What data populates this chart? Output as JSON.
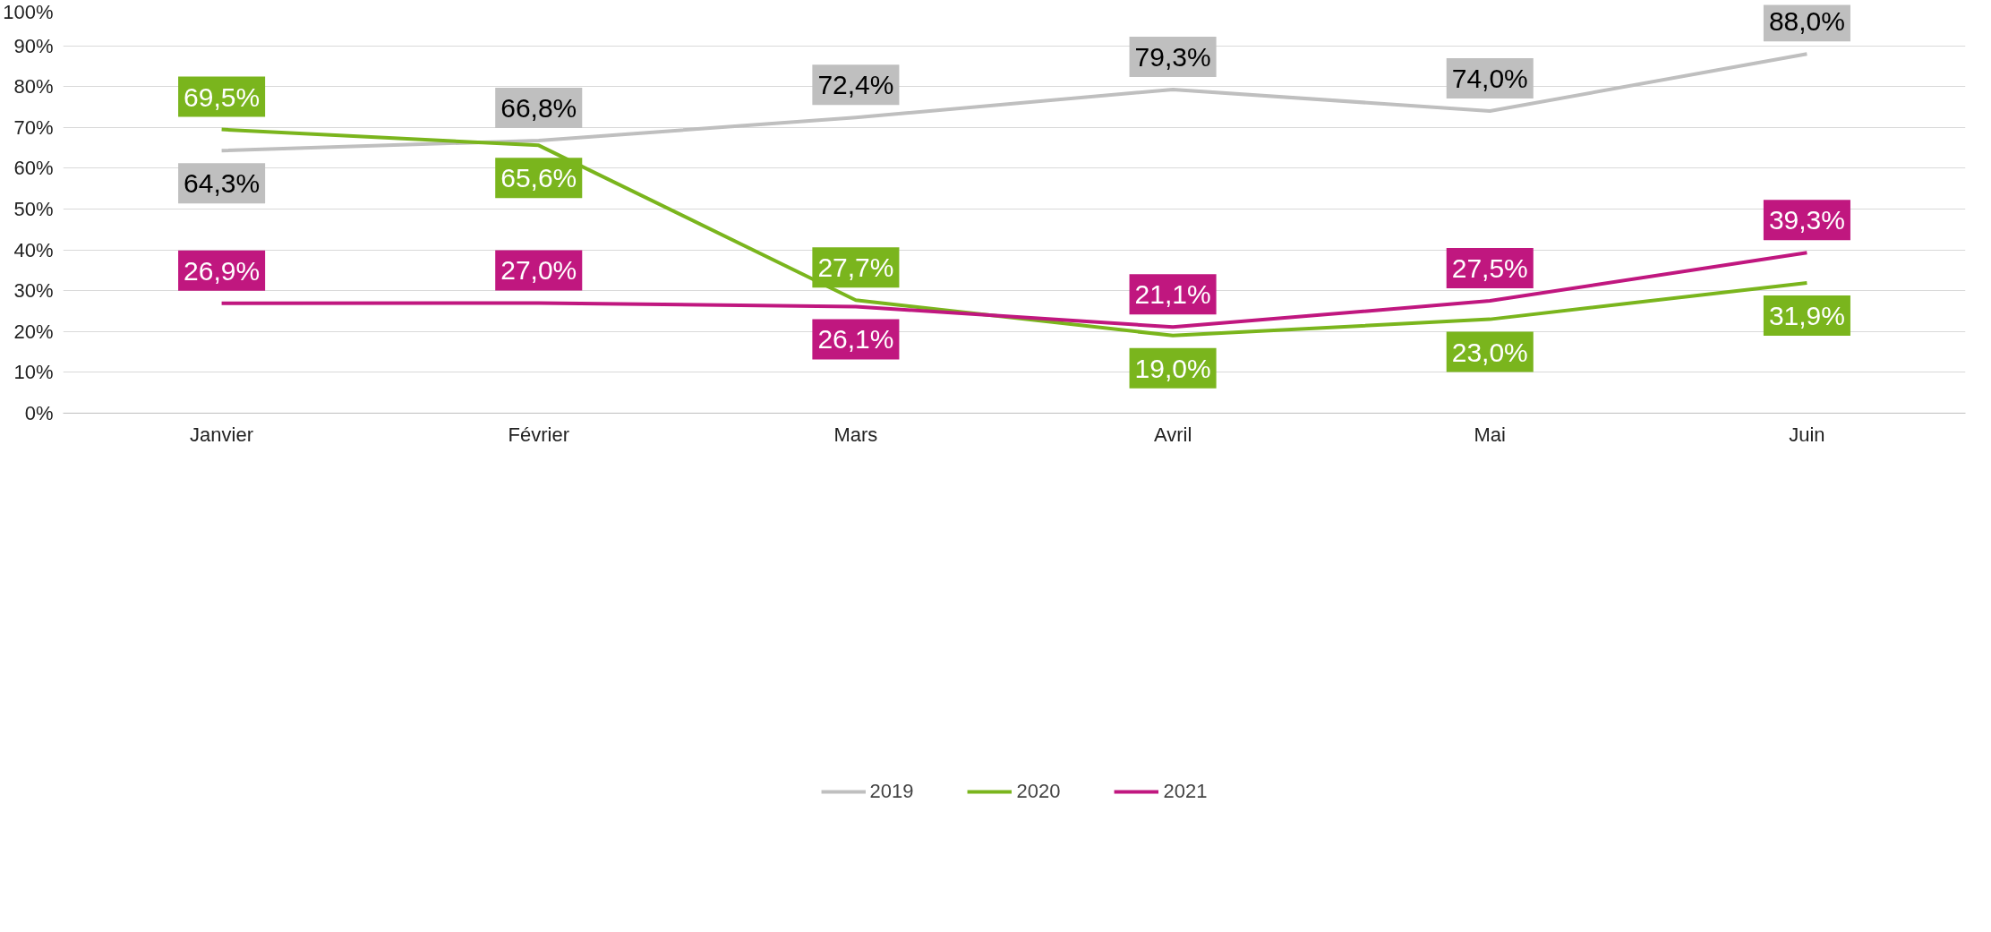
{
  "chart_data": {
    "type": "line",
    "categories": [
      "Janvier",
      "Février",
      "Mars",
      "Avril",
      "Mai",
      "Juin"
    ],
    "series": [
      {
        "name": "2019",
        "color": "#bfbfbf",
        "values": [
          64.3,
          66.8,
          72.4,
          79.3,
          74.0,
          88.0
        ],
        "value_labels": [
          "64,3%",
          "66,8%",
          "72,4%",
          "79,3%",
          "74,0%",
          "88,0%"
        ]
      },
      {
        "name": "2020",
        "color": "#7ab51d",
        "values": [
          69.5,
          65.6,
          27.7,
          19.0,
          23.0,
          31.9
        ],
        "value_labels": [
          "69,5%",
          "65,6%",
          "27,7%",
          "19,0%",
          "23,0%",
          "31,9%"
        ]
      },
      {
        "name": "2021",
        "color": "#c0177f",
        "values": [
          26.9,
          27.0,
          26.1,
          21.1,
          27.5,
          39.3
        ],
        "value_labels": [
          "26,9%",
          "27,0%",
          "26,1%",
          "21,1%",
          "27,5%",
          "39,3%"
        ]
      }
    ],
    "ylim": [
      0,
      100
    ],
    "yticks": [
      {
        "value": 0,
        "label": "0%"
      },
      {
        "value": 10,
        "label": "10%"
      },
      {
        "value": 20,
        "label": "20%"
      },
      {
        "value": 30,
        "label": "30%"
      },
      {
        "value": 40,
        "label": "40%"
      },
      {
        "value": 50,
        "label": "50%"
      },
      {
        "value": 60,
        "label": "60%"
      },
      {
        "value": 70,
        "label": "70%"
      },
      {
        "value": 80,
        "label": "80%"
      },
      {
        "value": 90,
        "label": "90%"
      },
      {
        "value": 100,
        "label": "100%"
      }
    ],
    "grid": "y",
    "legend": "bottom",
    "marker": "none",
    "line_style": "solid"
  }
}
